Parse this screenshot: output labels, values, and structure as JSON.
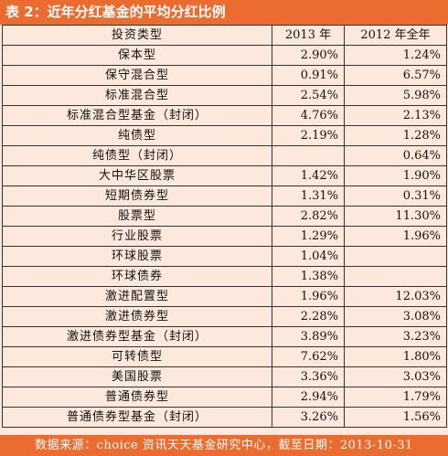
{
  "title": "表 2：近年分红基金的平均分红比例",
  "table": {
    "headers": [
      "投资类型",
      "2013 年",
      "2012 年全年"
    ],
    "rows": [
      [
        "保本型",
        "2.90%",
        "1.24%"
      ],
      [
        "保守混合型",
        "0.91%",
        "6.57%"
      ],
      [
        "标准混合型",
        "2.54%",
        "5.98%"
      ],
      [
        "标准混合型基金（封闭）",
        "4.76%",
        "2.13%"
      ],
      [
        "纯债型",
        "2.19%",
        "1.28%"
      ],
      [
        "纯债型（封闭）",
        "",
        "0.64%"
      ],
      [
        "大中华区股票",
        "1.42%",
        "1.90%"
      ],
      [
        "短期债券型",
        "1.31%",
        "0.31%"
      ],
      [
        "股票型",
        "2.82%",
        "11.30%"
      ],
      [
        "行业股票",
        "1.29%",
        "1.96%"
      ],
      [
        "环球股票",
        "1.04%",
        ""
      ],
      [
        "环球债券",
        "1.38%",
        ""
      ],
      [
        "激进配置型",
        "1.96%",
        "12.03%"
      ],
      [
        "激进债券型",
        "2.28%",
        "3.08%"
      ],
      [
        "激进债券型基金（封闭）",
        "3.89%",
        "3.23%"
      ],
      [
        "可转债型",
        "7.62%",
        "1.80%"
      ],
      [
        "美国股票",
        "3.36%",
        "3.03%"
      ],
      [
        "普通债券型",
        "2.94%",
        "1.79%"
      ],
      [
        "普通债券型基金（封闭）",
        "3.26%",
        "1.56%"
      ]
    ]
  },
  "footer": "数据来源：choice 资讯天天基金研究中心，截至日期：2013-10-31",
  "colors": {
    "accent": "#ec6b2f",
    "background": "#fde9dc",
    "border": "#333333"
  }
}
